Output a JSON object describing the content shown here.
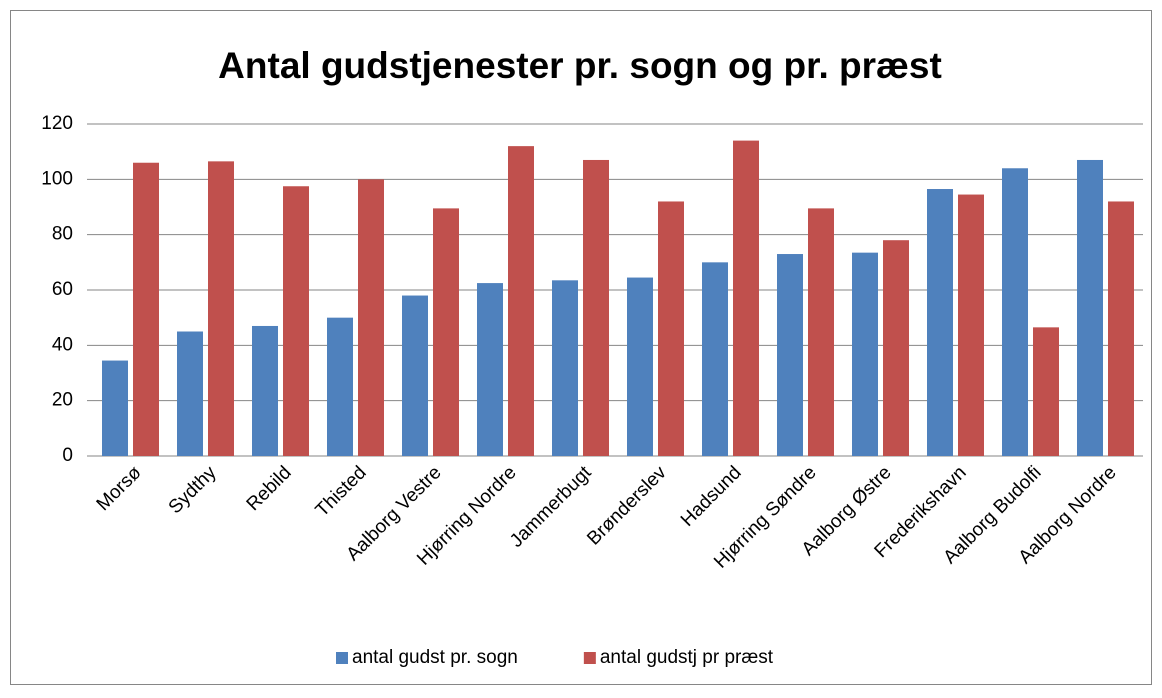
{
  "chart_data": {
    "type": "bar",
    "title": "Antal gudstjenester pr. sogn og pr. præst",
    "categories": [
      "Morsø",
      "Sydthy",
      "Rebild",
      "Thisted",
      "Aalborg Vestre",
      "Hjørring Nordre",
      "Jammerbugt",
      "Brønderslev",
      "Hadsund",
      "Hjørring Søndre",
      "Aalborg Østre",
      "Frederikshavn",
      "Aalborg Budolfi",
      "Aalborg Nordre"
    ],
    "series": [
      {
        "name": "antal gudst pr. sogn",
        "color": "#4f81bd",
        "values": [
          34.5,
          45,
          47,
          50,
          58,
          62.5,
          63.5,
          64.5,
          70,
          73,
          73.5,
          96.5,
          104,
          107
        ]
      },
      {
        "name": "antal gudstj pr præst",
        "color": "#c0504d",
        "values": [
          106,
          106.5,
          97.5,
          100,
          89.5,
          112,
          107,
          92,
          114,
          89.5,
          78,
          94.5,
          46.5,
          92
        ]
      }
    ],
    "ylim": [
      0,
      120
    ],
    "yticks": [
      0,
      20,
      40,
      60,
      80,
      100,
      120
    ],
    "grid": true,
    "legend": "bottom"
  }
}
